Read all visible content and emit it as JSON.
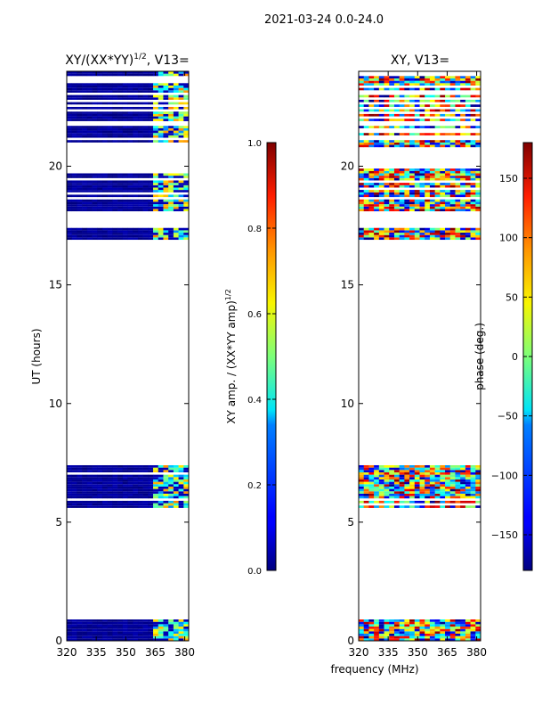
{
  "suptitle": "2021-03-24 0.0-24.0",
  "xlabel": "frequency (MHz)",
  "chart_data": [
    {
      "type": "heatmap",
      "title_main": "XY/(XX*YY)",
      "title_sup": "1/2",
      "title_rest": ", V13=",
      "ylabel": "UT (hours)",
      "x_range": [
        320,
        382
      ],
      "y_range": [
        0,
        24
      ],
      "x_ticks": [
        320,
        335,
        350,
        365,
        380
      ],
      "y_ticks": [
        0,
        5,
        10,
        15,
        20
      ],
      "colorbar": {
        "label_main": "XY amp. / (XX*YY amp)",
        "label_sup": "1/2",
        "range": [
          0.0,
          1.0
        ],
        "ticks": [
          "0.0",
          "0.2",
          "0.4",
          "0.6",
          "0.8",
          "1.0"
        ],
        "tick_values": [
          0.0,
          0.2,
          0.4,
          0.6,
          0.8,
          1.0
        ],
        "colormap": "jet"
      },
      "data_bands_hours": [
        [
          0.0,
          0.9
        ],
        [
          5.6,
          7.4
        ],
        [
          16.9,
          17.4
        ],
        [
          17.9,
          19.9
        ],
        [
          20.8,
          24.0
        ]
      ]
    },
    {
      "type": "heatmap",
      "title_main": "XY, V13=",
      "ylabel": "",
      "x_range": [
        320,
        382
      ],
      "y_range": [
        0,
        24
      ],
      "x_ticks": [
        320,
        335,
        350,
        365,
        380
      ],
      "y_ticks": [
        0,
        5,
        10,
        15,
        20
      ],
      "colorbar": {
        "label_main": "phase (deg.)",
        "range": [
          -180,
          180
        ],
        "ticks": [
          "−150",
          "−100",
          "−50",
          "0",
          "50",
          "100",
          "150"
        ],
        "tick_values": [
          -150,
          -100,
          -50,
          0,
          50,
          100,
          150
        ],
        "colormap": "jet"
      },
      "data_bands_hours": [
        [
          0.0,
          0.9
        ],
        [
          5.6,
          7.4
        ],
        [
          16.9,
          17.4
        ],
        [
          17.9,
          19.9
        ],
        [
          20.8,
          24.0
        ]
      ]
    }
  ]
}
